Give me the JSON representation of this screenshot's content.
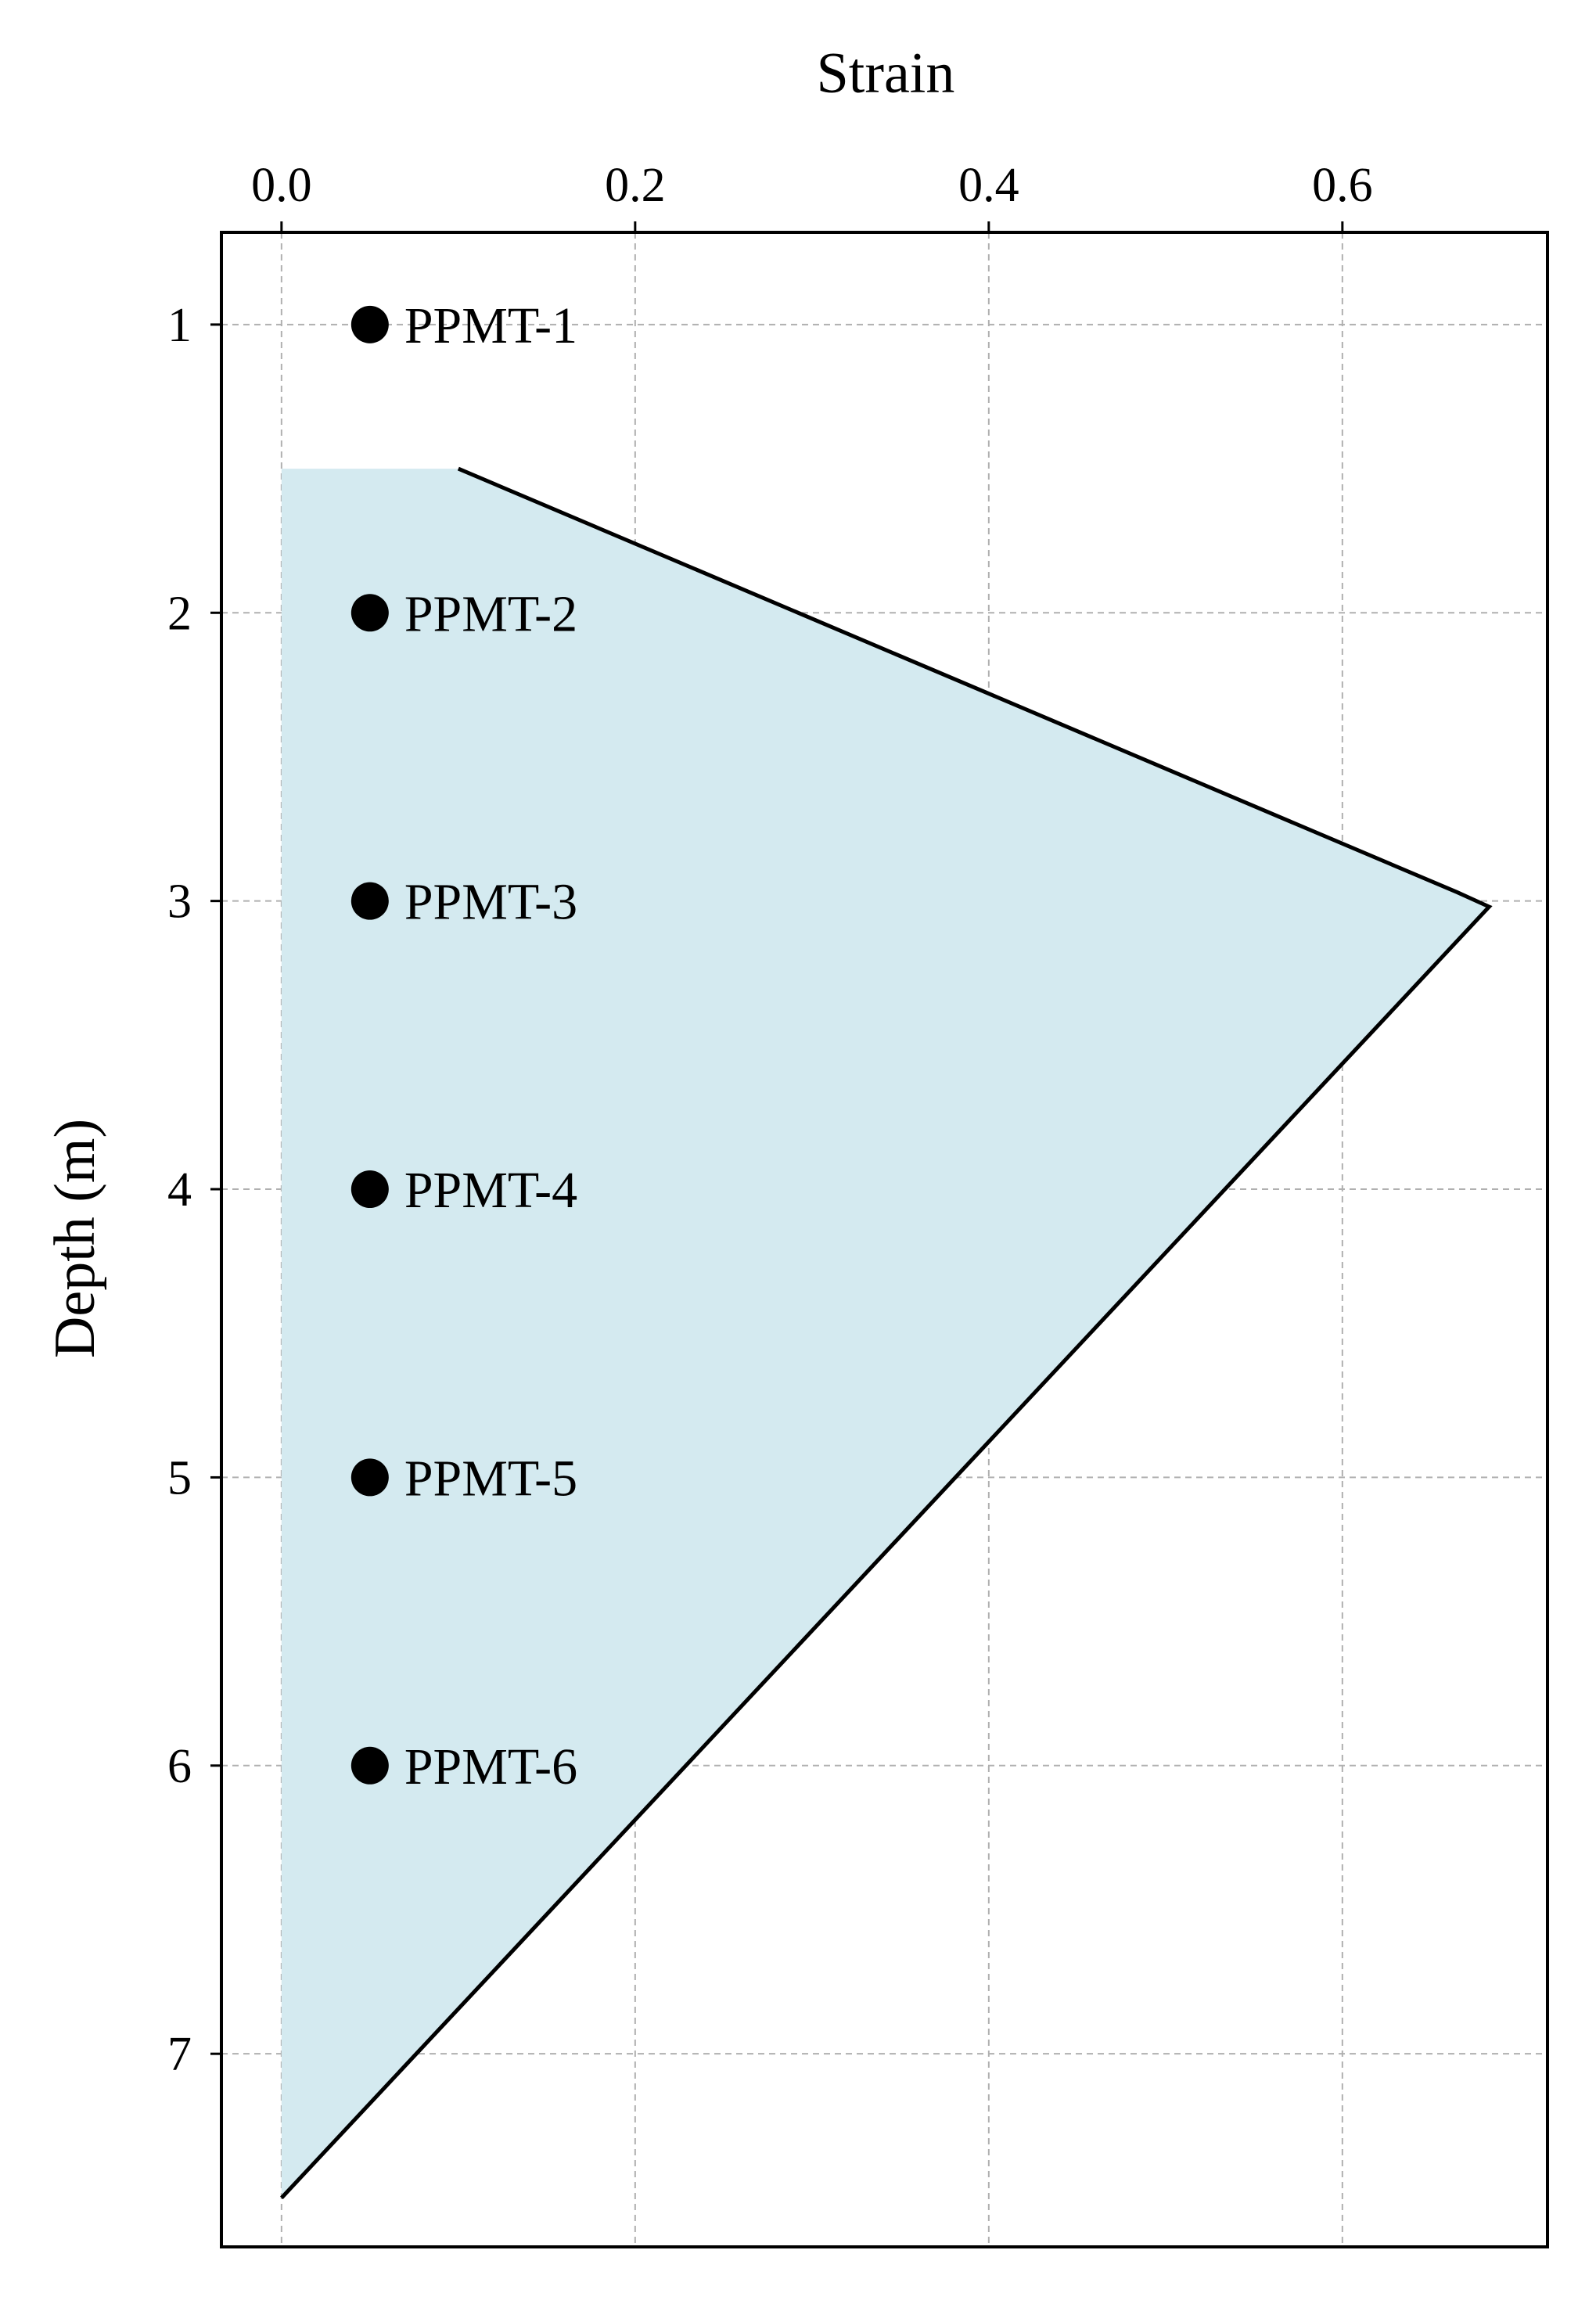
{
  "chart_data": {
    "type": "area",
    "xlabel": "Strain",
    "ylabel": "Depth (m)",
    "xlim": [
      -0.034,
      0.716
    ],
    "ylim": [
      0.68,
      7.67
    ],
    "y_inverted": true,
    "x_axis_position": "top",
    "x_ticks": [
      0.0,
      0.2,
      0.4,
      0.6
    ],
    "x_tick_labels": [
      "0.0",
      "0.2",
      "0.4",
      "0.6"
    ],
    "y_ticks": [
      1,
      2,
      3,
      4,
      5,
      6,
      7
    ],
    "y_tick_labels": [
      "1",
      "2",
      "3",
      "4",
      "5",
      "6",
      "7"
    ],
    "grid": true,
    "strain_profile": {
      "strain": [
        0.0,
        0.1,
        0.665,
        0.683,
        0.0
      ],
      "depth": [
        1.5,
        1.5,
        2.97,
        3.02,
        7.5
      ],
      "fill_color": "#d4eaf0",
      "line_color": "#000000"
    },
    "markers": [
      {
        "label": "PPMT-1",
        "strain": 0.05,
        "depth": 1
      },
      {
        "label": "PPMT-2",
        "strain": 0.05,
        "depth": 2
      },
      {
        "label": "PPMT-3",
        "strain": 0.05,
        "depth": 3
      },
      {
        "label": "PPMT-4",
        "strain": 0.05,
        "depth": 4
      },
      {
        "label": "PPMT-5",
        "strain": 0.05,
        "depth": 5
      },
      {
        "label": "PPMT-6",
        "strain": 0.05,
        "depth": 6
      }
    ]
  }
}
